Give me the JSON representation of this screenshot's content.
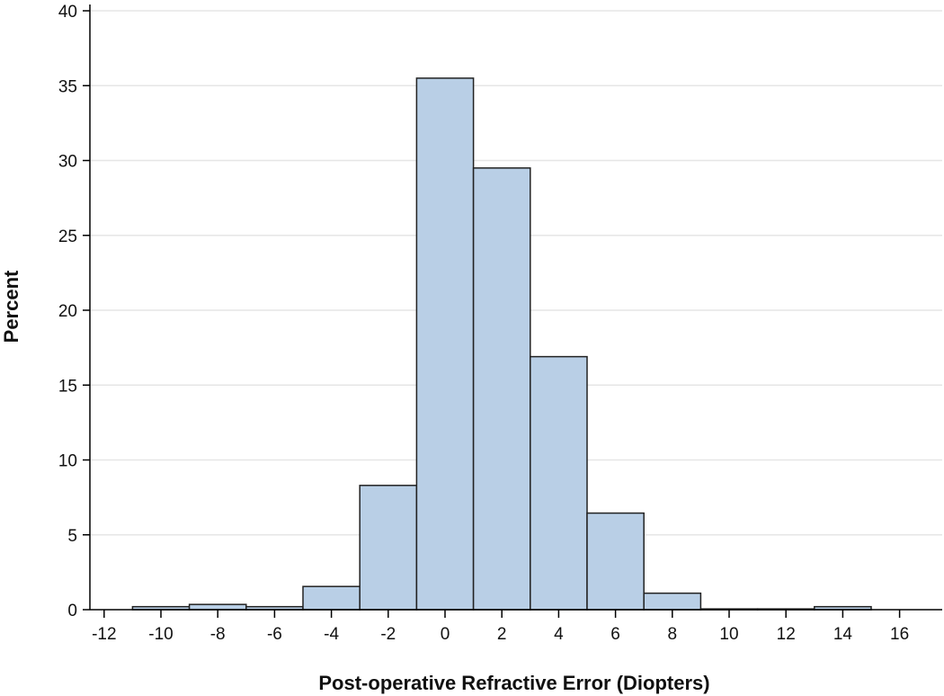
{
  "chart_data": {
    "type": "bar",
    "subtype": "histogram",
    "title": "",
    "xlabel": "Post-operative Refractive Error (Diopters)",
    "ylabel": "Percent",
    "xlim": [
      -12.5,
      17.5
    ],
    "ylim": [
      0,
      40
    ],
    "x_ticks": [
      "-12",
      "-10",
      "-8",
      "-6",
      "-4",
      "-2",
      "0",
      "2",
      "4",
      "6",
      "8",
      "10",
      "12",
      "14",
      "16"
    ],
    "y_ticks": [
      "0",
      "5",
      "10",
      "15",
      "20",
      "25",
      "30",
      "35",
      "40"
    ],
    "bin_width": 2,
    "bins": [
      {
        "x": -10,
        "value": 0.2
      },
      {
        "x": -8,
        "value": 0.35
      },
      {
        "x": -6,
        "value": 0.2
      },
      {
        "x": -4,
        "value": 1.55
      },
      {
        "x": -2,
        "value": 8.3
      },
      {
        "x": 0,
        "value": 35.5
      },
      {
        "x": 2,
        "value": 29.5
      },
      {
        "x": 4,
        "value": 16.9
      },
      {
        "x": 6,
        "value": 6.45
      },
      {
        "x": 8,
        "value": 1.1
      },
      {
        "x": 10,
        "value": 0.05
      },
      {
        "x": 12,
        "value": 0.05
      },
      {
        "x": 14,
        "value": 0.2
      }
    ],
    "grid": true,
    "legend": "none",
    "colors": {
      "bar_fill": "#b9cfe6",
      "bar_stroke": "#222222",
      "grid": "#e6e6e6",
      "axis": "#000000"
    }
  }
}
